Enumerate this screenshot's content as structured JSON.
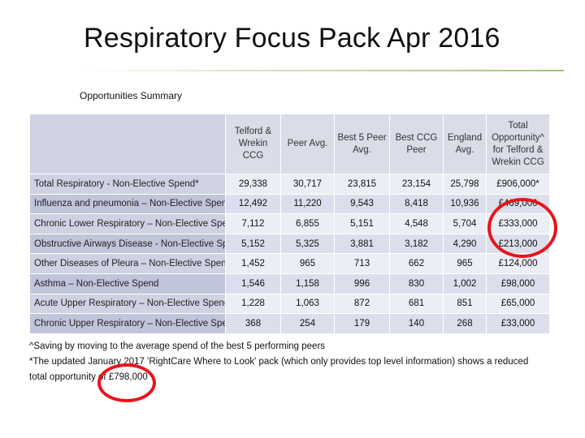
{
  "slide": {
    "title": "Respiratory Focus Pack Apr 2016",
    "subtitle": "Opportunities Summary"
  },
  "table": {
    "headers": [
      "",
      "Telford & Wrekin CCG",
      "Peer Avg.",
      "Best 5 Peer Avg.",
      "Best CCG Peer",
      "England Avg.",
      "Total Opportunity^ for Telford & Wrekin CCG"
    ],
    "rows": [
      [
        "Total Respiratory - Non-Elective Spend*",
        "29,338",
        "30,717",
        "23,815",
        "23,154",
        "25,798",
        "£906,000*"
      ],
      [
        "Influenza and pneumonia – Non-Elective Spend",
        "12,492",
        "11,220",
        "9,543",
        "8,418",
        "10,936",
        "£469,000"
      ],
      [
        "Chronic Lower Respiratory – Non-Elective Spend",
        "7,112",
        "6,855",
        "5,151",
        "4,548",
        "5,704",
        "£333,000"
      ],
      [
        "Obstructive Airways Disease - Non-Elective Spend",
        "5,152",
        "5,325",
        "3,881",
        "3,182",
        "4,290",
        "£213,000"
      ],
      [
        "Other Diseases of Pleura – Non-Elective Spend",
        "1,452",
        "965",
        "713",
        "662",
        "965",
        "£124,000"
      ],
      [
        "Asthma – Non-Elective Spend",
        "1,546",
        "1,158",
        "996",
        "830",
        "1,002",
        "£98,000"
      ],
      [
        "Acute Upper Respiratory – Non-Elective Spend",
        "1,228",
        "1,063",
        "872",
        "681",
        "851",
        "£65,000"
      ],
      [
        "Chronic Upper Respiratory – Non-Elective Spend",
        "368",
        "254",
        "179",
        "140",
        "268",
        "£33,000"
      ]
    ]
  },
  "notes": {
    "line1": "^Saving by moving to the average spend of the best 5 performing peers",
    "line2": "*The updated January 2017 'RightCare Where to Look' pack (which only provides top level information) shows a reduced",
    "line3": "total opportunity of £798,000"
  },
  "colors": {
    "highlight_circle": "#e8141c",
    "header_fill": "#dadce8",
    "row_fill": "#eceef5",
    "title_rule": "#a8c070"
  }
}
